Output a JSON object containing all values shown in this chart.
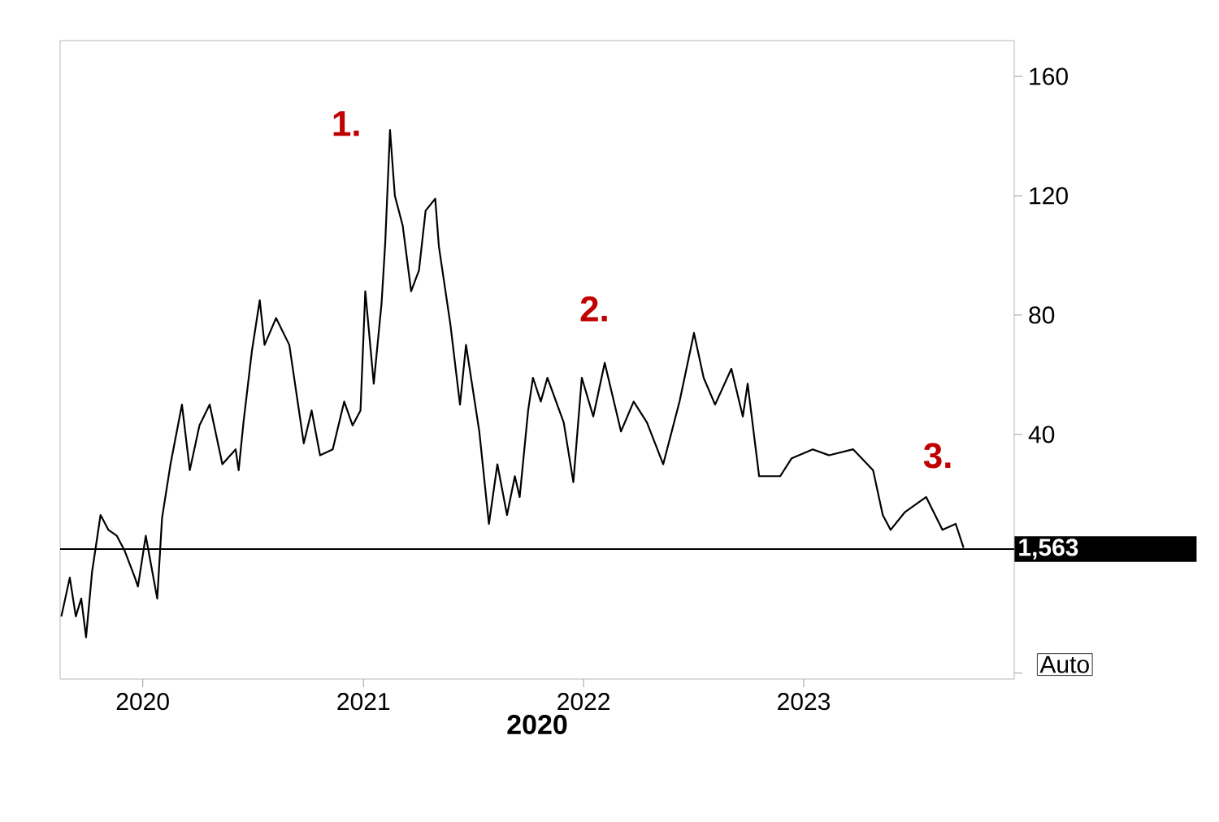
{
  "chart_data": {
    "type": "line",
    "xlabel": "2020",
    "x": [
      "2019-08-19",
      "2019-09-02",
      "2019-09-12",
      "2019-09-21",
      "2019-09-29",
      "2019-10-09",
      "2019-10-23",
      "2019-11-05",
      "2019-11-19",
      "2019-12-02",
      "2019-12-19",
      "2019-12-24",
      "2020-01-06",
      "2020-01-25",
      "2020-02-02",
      "2020-02-16",
      "2020-03-06",
      "2020-03-19",
      "2020-04-04",
      "2020-04-21",
      "2020-05-12",
      "2020-06-03",
      "2020-06-08",
      "2020-06-16",
      "2020-06-30",
      "2020-07-13",
      "2020-07-21",
      "2020-08-09",
      "2020-08-31",
      "2020-09-24",
      "2020-10-07",
      "2020-10-21",
      "2020-11-11",
      "2020-11-30",
      "2020-12-14",
      "2020-12-27",
      "2021-01-04",
      "2021-01-18",
      "2021-01-31",
      "2021-02-06",
      "2021-02-14",
      "2021-02-22",
      "2021-03-07",
      "2021-03-21",
      "2021-04-03",
      "2021-04-14",
      "2021-04-30",
      "2021-05-06",
      "2021-05-25",
      "2021-06-10",
      "2021-06-20",
      "2021-07-12",
      "2021-07-28",
      "2021-08-11",
      "2021-08-27",
      "2021-09-09",
      "2021-09-17",
      "2021-10-01",
      "2021-10-09",
      "2021-10-22",
      "2021-11-02",
      "2021-11-29",
      "2021-12-15",
      "2021-12-29",
      "2022-01-17",
      "2022-02-05",
      "2022-03-04",
      "2022-03-25",
      "2022-04-16",
      "2022-05-13",
      "2022-06-09",
      "2022-07-03",
      "2022-07-19",
      "2022-08-07",
      "2022-09-03",
      "2022-09-22",
      "2022-09-30",
      "2022-10-19",
      "2022-11-23",
      "2022-12-12",
      "2023-01-16",
      "2023-02-12",
      "2023-03-24",
      "2023-04-26",
      "2023-05-12",
      "2023-05-25",
      "2023-06-18",
      "2023-07-23",
      "2023-08-19",
      "2023-09-10",
      "2023-09-23"
    ],
    "series": [
      {
        "color": "#000000",
        "values": [
          -21,
          -8,
          -21,
          -15,
          -28,
          -6,
          13,
          8,
          6,
          1,
          -8,
          -11,
          6,
          -15,
          12,
          30,
          50,
          28,
          43,
          50,
          30,
          35,
          28,
          44,
          68,
          85,
          70,
          79,
          70,
          37,
          48,
          33,
          35,
          51,
          43,
          48,
          88,
          57,
          84,
          104,
          142,
          120,
          110,
          88,
          95,
          115,
          119,
          103,
          77,
          50,
          70,
          41,
          10,
          30,
          13,
          26,
          19,
          48,
          59,
          51,
          59,
          44,
          24,
          59,
          46,
          64,
          41,
          51,
          44,
          30,
          51,
          74,
          59,
          50,
          62,
          46,
          57,
          26,
          26,
          32,
          35,
          33,
          35,
          28,
          13,
          8,
          14,
          19,
          8,
          10,
          2
        ]
      }
    ],
    "xlim": [
      "2019-08-17",
      "2023-12-16"
    ],
    "xticks": [
      {
        "value": "2020-01-01",
        "label": "2020"
      },
      {
        "value": "2021-01-01",
        "label": "2021"
      },
      {
        "value": "2022-01-01",
        "label": "2022"
      },
      {
        "value": "2023-01-01",
        "label": "2023"
      }
    ],
    "ylim": [
      -42,
      172
    ],
    "yticks": [
      {
        "value": -40,
        "label": null
      },
      40,
      80,
      120,
      160
    ],
    "ref_lines": [
      {
        "axis": "y",
        "value": 1.563,
        "label": "1,563",
        "color": "#000000"
      }
    ],
    "annotations": [
      "1.",
      "2.",
      "3.",
      "Auto"
    ],
    "grid": false,
    "marker": "none",
    "line_style": "solid"
  }
}
